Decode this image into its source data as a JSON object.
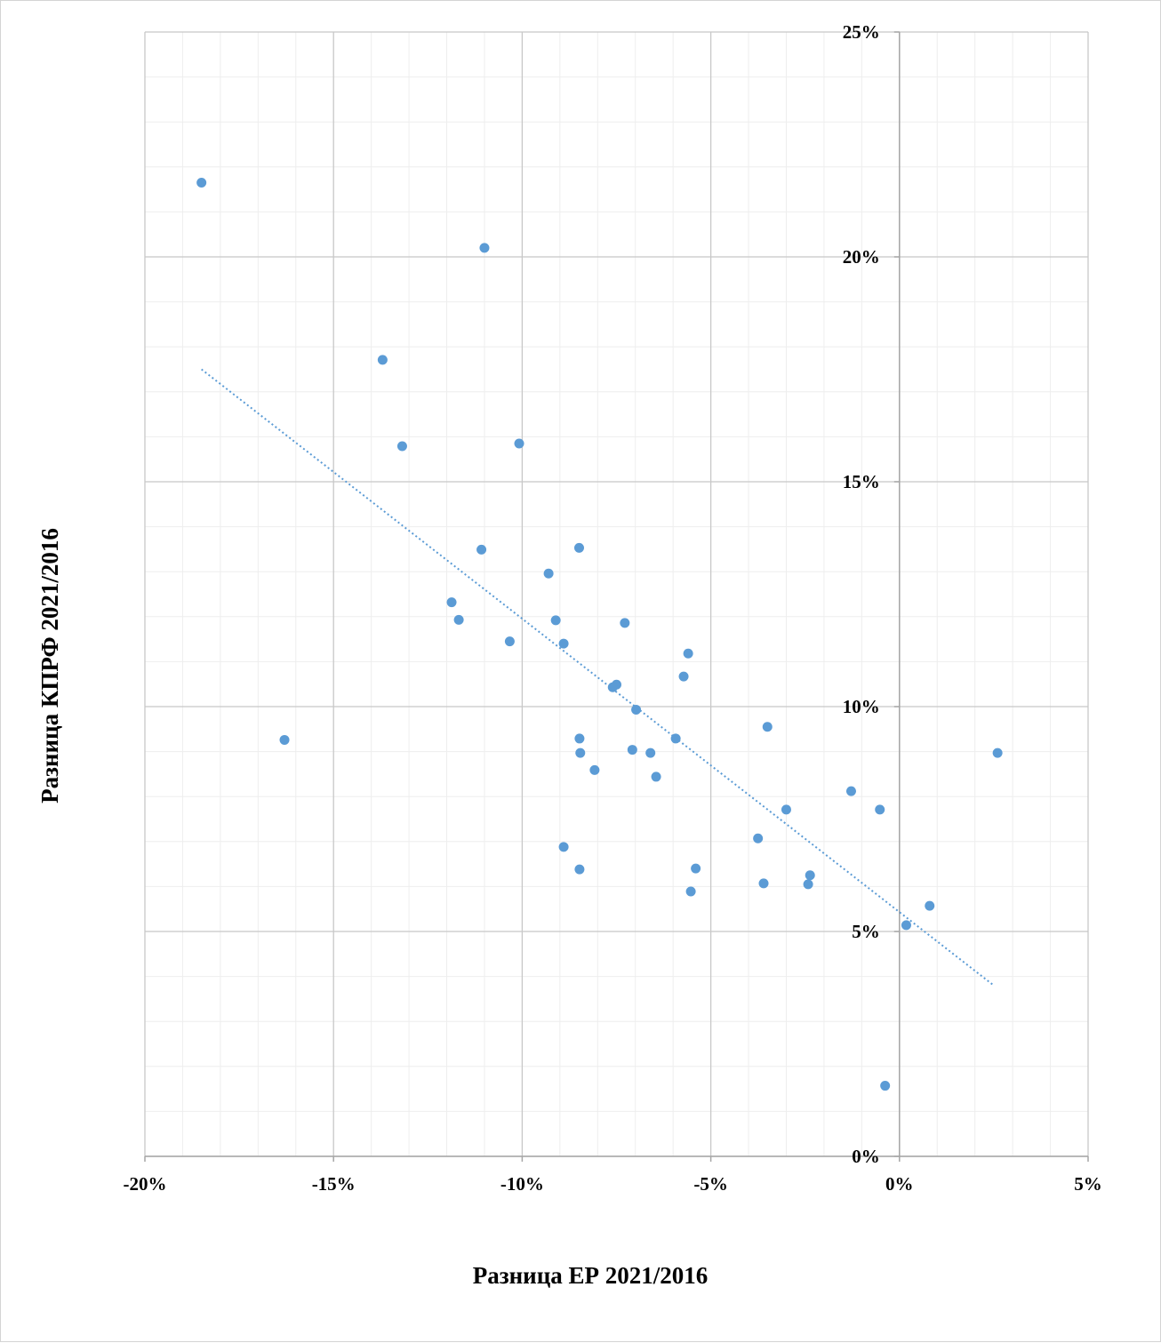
{
  "chart_data": {
    "type": "scatter",
    "title": "",
    "xlabel": "Разница ЕР 2021/2016",
    "ylabel": "Разница КПРФ 2021/2016",
    "xlim": [
      -0.2,
      0.05
    ],
    "ylim": [
      0.0,
      0.25
    ],
    "x_ticks": [
      {
        "value": -0.2,
        "label": "-20%"
      },
      {
        "value": -0.15,
        "label": "-15%"
      },
      {
        "value": -0.1,
        "label": "-10%"
      },
      {
        "value": -0.05,
        "label": "-5%"
      },
      {
        "value": 0.0,
        "label": "0%"
      },
      {
        "value": 0.05,
        "label": "5%"
      }
    ],
    "y_ticks": [
      {
        "value": 0.0,
        "label": "0%"
      },
      {
        "value": 0.05,
        "label": "5%"
      },
      {
        "value": 0.1,
        "label": "10%"
      },
      {
        "value": 0.15,
        "label": "15%"
      },
      {
        "value": 0.2,
        "label": "20%"
      },
      {
        "value": 0.25,
        "label": "25%"
      }
    ],
    "grid": true,
    "marker_color": "#5b9bd5",
    "trendline": {
      "type": "linear",
      "style": "dotted",
      "color": "#5b9bd5",
      "x": [
        -0.185,
        0.025
      ],
      "y": [
        0.175,
        0.038
      ]
    },
    "series": [
      {
        "points": [
          {
            "x": -0.185,
            "y": 0.2165
          },
          {
            "x": -0.11,
            "y": 0.202
          },
          {
            "x": -0.137,
            "y": 0.1771
          },
          {
            "x": -0.1318,
            "y": 0.1579
          },
          {
            "x": -0.1008,
            "y": 0.1585
          },
          {
            "x": -0.1108,
            "y": 0.1349
          },
          {
            "x": -0.0849,
            "y": 0.1353
          },
          {
            "x": -0.093,
            "y": 0.1296
          },
          {
            "x": -0.1187,
            "y": 0.1232
          },
          {
            "x": -0.1168,
            "y": 0.1193
          },
          {
            "x": -0.0911,
            "y": 0.1192
          },
          {
            "x": -0.0728,
            "y": 0.1186
          },
          {
            "x": -0.1033,
            "y": 0.1145
          },
          {
            "x": -0.089,
            "y": 0.114
          },
          {
            "x": -0.056,
            "y": 0.1118
          },
          {
            "x": -0.0572,
            "y": 0.1067
          },
          {
            "x": -0.075,
            "y": 0.1049
          },
          {
            "x": -0.076,
            "y": 0.1043
          },
          {
            "x": -0.0698,
            "y": 0.0993
          },
          {
            "x": -0.035,
            "y": 0.0955
          },
          {
            "x": -0.163,
            "y": 0.0926
          },
          {
            "x": -0.0848,
            "y": 0.0929
          },
          {
            "x": -0.0593,
            "y": 0.0929
          },
          {
            "x": -0.0708,
            "y": 0.0904
          },
          {
            "x": -0.066,
            "y": 0.0897
          },
          {
            "x": -0.0846,
            "y": 0.0897
          },
          {
            "x": 0.026,
            "y": 0.0897
          },
          {
            "x": -0.0808,
            "y": 0.0859
          },
          {
            "x": -0.0645,
            "y": 0.0844
          },
          {
            "x": -0.0128,
            "y": 0.0812
          },
          {
            "x": -0.03,
            "y": 0.0771
          },
          {
            "x": -0.0052,
            "y": 0.0771
          },
          {
            "x": -0.0375,
            "y": 0.0707
          },
          {
            "x": -0.089,
            "y": 0.0688
          },
          {
            "x": -0.0848,
            "y": 0.0638
          },
          {
            "x": -0.054,
            "y": 0.064
          },
          {
            "x": -0.0237,
            "y": 0.0625
          },
          {
            "x": -0.036,
            "y": 0.0607
          },
          {
            "x": -0.0242,
            "y": 0.0605
          },
          {
            "x": -0.0553,
            "y": 0.0589
          },
          {
            "x": 0.008,
            "y": 0.0557
          },
          {
            "x": 0.0018,
            "y": 0.0514
          },
          {
            "x": -0.0038,
            "y": 0.0157
          }
        ]
      }
    ]
  }
}
